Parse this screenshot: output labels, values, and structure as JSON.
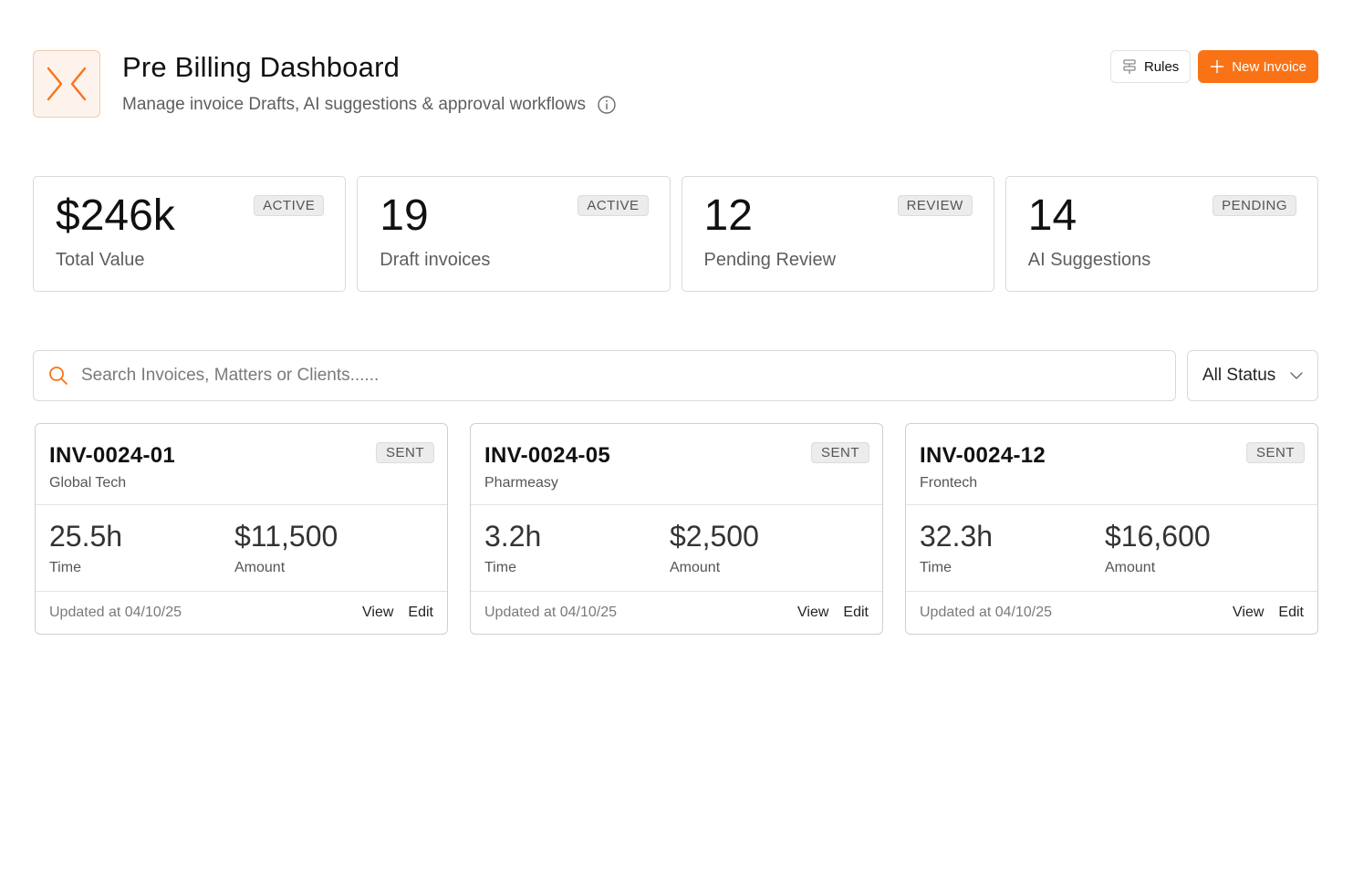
{
  "header": {
    "logo_icon": "collapse-arrows-icon",
    "title": "Pre Billing Dashboard",
    "subtitle": "Manage invoice Drafts, AI suggestions & approval workflows",
    "rules_label": "Rules",
    "new_invoice_label": "New Invoice"
  },
  "colors": {
    "accent": "#f97316",
    "badge_bg": "#ececec",
    "border": "#d9d9d9"
  },
  "stats": [
    {
      "value": "$246k",
      "label": "Total Value",
      "badge": "ACTIVE"
    },
    {
      "value": "19",
      "label": "Draft invoices",
      "badge": "ACTIVE"
    },
    {
      "value": "12",
      "label": "Pending Review",
      "badge": "REVIEW"
    },
    {
      "value": "14",
      "label": "AI Suggestions",
      "badge": "PENDING"
    }
  ],
  "search": {
    "placeholder": "Search Invoices, Matters or Clients......"
  },
  "status_filter": {
    "selected": "All Status"
  },
  "invoices": [
    {
      "id": "INV-0024-01",
      "client": "Global Tech",
      "badge": "SENT",
      "time": "25.5h",
      "time_label": "Time",
      "amount": "$11,500",
      "amount_label": "Amount",
      "updated": "Updated at 04/10/25",
      "view_label": "View",
      "edit_label": "Edit"
    },
    {
      "id": "INV-0024-05",
      "client": "Pharmeasy",
      "badge": "SENT",
      "time": "3.2h",
      "time_label": "Time",
      "amount": "$2,500",
      "amount_label": "Amount",
      "updated": "Updated at 04/10/25",
      "view_label": "View",
      "edit_label": "Edit"
    },
    {
      "id": "INV-0024-12",
      "client": "Frontech",
      "badge": "SENT",
      "time": "32.3h",
      "time_label": "Time",
      "amount": "$16,600",
      "amount_label": "Amount",
      "updated": "Updated at 04/10/25",
      "view_label": "View",
      "edit_label": "Edit"
    }
  ]
}
